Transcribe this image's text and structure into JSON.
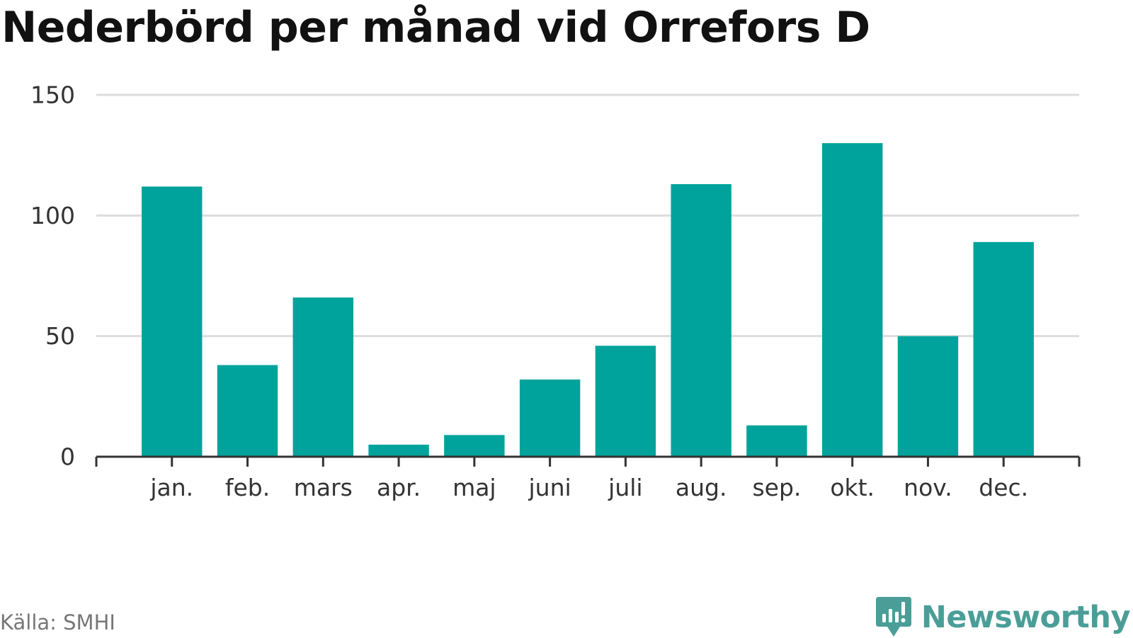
{
  "header": {
    "title": "Nederbörd per månad vid Orrefors D"
  },
  "footer": {
    "source": "Källa: SMHI",
    "brand": "Newsworthy",
    "brand_icon": "newsworthy-logo-icon",
    "brand_color": "#4a9e97"
  },
  "chart_data": {
    "type": "bar",
    "title": "Nederbörd per månad vid Orrefors D",
    "xlabel": "",
    "ylabel": "",
    "categories": [
      "jan.",
      "feb.",
      "mars",
      "apr.",
      "maj",
      "juni",
      "juli",
      "aug.",
      "sep.",
      "okt.",
      "nov.",
      "dec."
    ],
    "values": [
      112,
      38,
      66,
      5,
      9,
      32,
      46,
      113,
      13,
      130,
      50,
      89
    ],
    "ylim": [
      0,
      150
    ],
    "yticks": [
      0,
      50,
      100,
      150
    ],
    "grid": true,
    "bar_color": "#00a39b",
    "grid_color": "#dddddd",
    "axis_color": "#333333"
  }
}
